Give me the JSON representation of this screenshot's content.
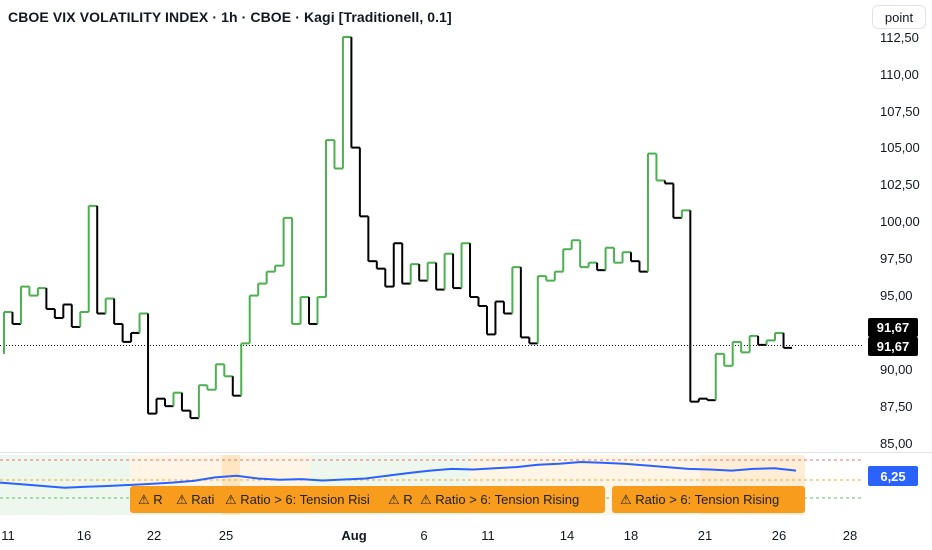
{
  "header": {
    "title": "CBOE VIX VOLATILITY INDEX · 1h · CBOE · Kagi [Traditionell, 0.1]",
    "unit_button": "point"
  },
  "price_axis": {
    "labels": [
      "112,50",
      "110,00",
      "107,50",
      "105,00",
      "102,50",
      "100,00",
      "97,50",
      "95,00",
      "90,00",
      "87,50",
      "85,00"
    ],
    "last_price_1": "91,67",
    "last_price_2": "91,67"
  },
  "time_axis": {
    "labels": [
      "11",
      "16",
      "22",
      "25",
      "Aug",
      "6",
      "11",
      "14",
      "18",
      "21",
      "26",
      "28"
    ]
  },
  "indicator": {
    "value_label": "6,25"
  },
  "alerts": [
    {
      "text": "⚠ R"
    },
    {
      "text": "⚠ Rati"
    },
    {
      "text": "⚠ Ratio > 6: Tension Risi"
    },
    {
      "text": "⚠ R"
    },
    {
      "text": "⚠ Ratio > 6: Tension Rising"
    },
    {
      "text": "⚠ Ratio > 6: Tension Rising"
    }
  ],
  "colors": {
    "up": "#4caf50",
    "down": "#000000",
    "indicator_line": "#2962ff",
    "alert_bg": "#f79c1d"
  },
  "chart_data": {
    "type": "line",
    "style": "kagi",
    "x": [
      "Jul 11",
      "Jul 16",
      "Jul 22",
      "Jul 25",
      "Aug 1",
      "Aug 6",
      "Aug 11",
      "Aug 14",
      "Aug 18",
      "Aug 21",
      "Aug 26",
      "Aug 28"
    ],
    "kagi_levels": [
      91.3,
      94.1,
      93.3,
      95.8,
      95.2,
      95.7,
      94.3,
      93.7,
      94.6,
      93.1,
      94.1,
      101.2,
      94.0,
      95.0,
      93.3,
      92.1,
      92.7,
      94.0,
      87.3,
      88.3,
      87.8,
      88.7,
      87.5,
      87.0,
      89.2,
      88.9,
      90.6,
      89.8,
      88.5,
      92.0,
      95.2,
      96.0,
      96.8,
      97.2,
      100.4,
      93.3,
      95.1,
      93.3,
      95.1,
      105.6,
      103.7,
      112.5,
      105.1,
      100.5,
      97.5,
      97.0,
      95.8,
      98.7,
      96.0,
      97.3,
      96.2,
      97.4,
      95.6,
      98.0,
      95.7,
      98.7,
      95.1,
      94.5,
      92.6,
      94.8,
      94.0,
      97.1,
      92.4,
      92.0,
      96.5,
      96.2,
      96.8,
      98.3,
      98.9,
      97.1,
      97.4,
      96.9,
      98.4,
      97.4,
      98.1,
      97.5,
      96.8,
      104.7,
      102.9,
      102.7,
      100.4,
      100.9,
      88.1,
      88.3,
      88.2,
      91.3,
      90.5,
      92.1,
      91.4,
      92.5,
      91.9,
      92.2,
      92.7,
      91.7
    ],
    "ylim": [
      84,
      113
    ],
    "last_value": 91.67,
    "indicator": {
      "name": "Ratio",
      "threshold": 6,
      "last_value": 6.25,
      "values": [
        5.9,
        5.85,
        5.8,
        5.75,
        5.78,
        5.8,
        5.83,
        5.86,
        5.9,
        5.95,
        6.05,
        6.1,
        6.02,
        5.98,
        6.0,
        5.96,
        5.99,
        6.02,
        6.1,
        6.18,
        6.25,
        6.3,
        6.28,
        6.32,
        6.35,
        6.42,
        6.45,
        6.5,
        6.48,
        6.45,
        6.4,
        6.35,
        6.3,
        6.28,
        6.25,
        6.3,
        6.32,
        6.25
      ]
    }
  }
}
